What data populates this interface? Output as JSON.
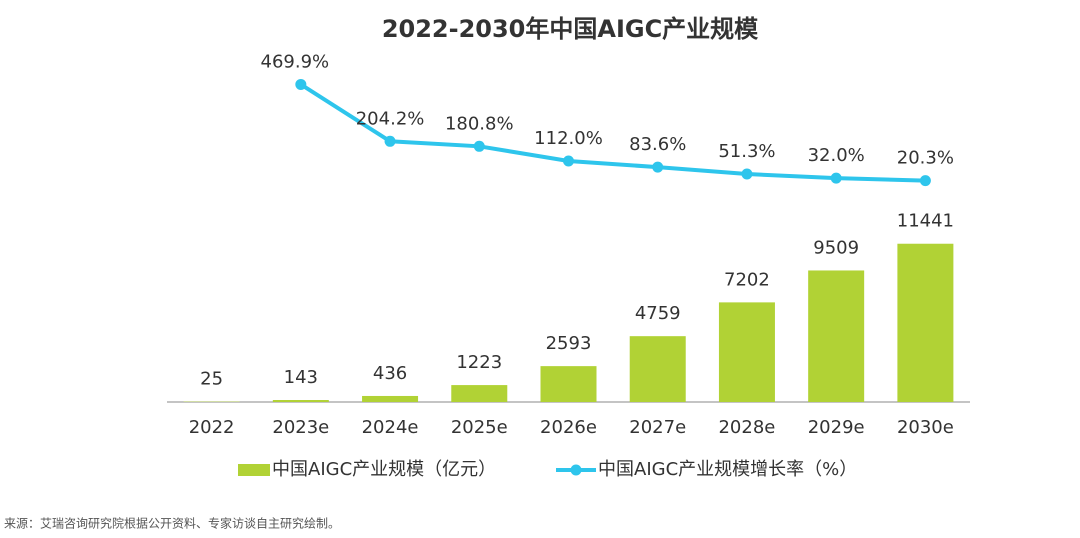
{
  "chart_data": {
    "type": "bar",
    "title": "2022-2030年中国AIGC产业规模",
    "categories": [
      "2022",
      "2023e",
      "2024e",
      "2025e",
      "2026e",
      "2027e",
      "2028e",
      "2029e",
      "2030e"
    ],
    "series": [
      {
        "name": "中国AIGC产业规模（亿元）",
        "type": "bar",
        "color": "#b1d235",
        "values": [
          25,
          143,
          436,
          1223,
          2593,
          4759,
          7202,
          9509,
          11441
        ]
      },
      {
        "name": "中国AIGC产业规模增长率（%）",
        "type": "line",
        "axis": "y2",
        "color": "#2ec5ec",
        "values": [
          null,
          469.9,
          204.2,
          180.8,
          112.0,
          83.6,
          51.3,
          32.0,
          20.3
        ],
        "value_labels": [
          null,
          "469.9%",
          "204.2%",
          "180.8%",
          "112.0%",
          "83.6%",
          "51.3%",
          "32.0%",
          "20.3%"
        ]
      }
    ],
    "ylim": [
      0,
      12000
    ],
    "y2lim": [
      0,
      500
    ],
    "legend": "bottom",
    "source": "来源：艾瑞咨询研究院根据公开资料、专家访谈自主研究绘制。"
  }
}
